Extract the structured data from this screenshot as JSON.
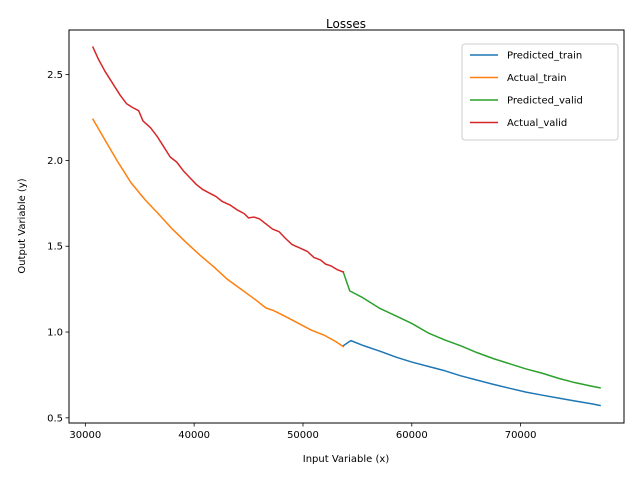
{
  "chart_data": {
    "type": "line",
    "title": "Losses",
    "xlabel": "Input Variable (x)",
    "ylabel": "Output Variable (y)",
    "xlim": [
      28500,
      79500
    ],
    "ylim": [
      0.47,
      2.76
    ],
    "xticks": [
      30000,
      40000,
      50000,
      60000,
      70000
    ],
    "xtick_labels": [
      "30000",
      "40000",
      "50000",
      "60000",
      "70000"
    ],
    "yticks": [
      0.5,
      1.0,
      1.5,
      2.0,
      2.5
    ],
    "ytick_labels": [
      "0.5",
      "1.0",
      "1.5",
      "2.0",
      "2.5"
    ],
    "grid": false,
    "legend_position": "top-right",
    "series": [
      {
        "name": "Predicted_train",
        "color": "#1f77b4",
        "x": [
          53700,
          54400,
          55600,
          57000,
          58500,
          60000,
          61500,
          63000,
          64500,
          66000,
          67500,
          69000,
          70500,
          72000,
          73500,
          75000,
          76500,
          77300
        ],
        "y": [
          0.92,
          0.95,
          0.92,
          0.89,
          0.855,
          0.825,
          0.8,
          0.775,
          0.745,
          0.72,
          0.695,
          0.672,
          0.65,
          0.632,
          0.615,
          0.598,
          0.582,
          0.572
        ]
      },
      {
        "name": "Actual_train",
        "color": "#ff7f0e",
        "x": [
          30700,
          31800,
          33000,
          34200,
          35500,
          36700,
          38000,
          39300,
          40500,
          41800,
          43000,
          44300,
          45600,
          46600,
          47300,
          48400,
          49600,
          50800,
          52000,
          53000,
          53700
        ],
        "y": [
          2.24,
          2.12,
          1.99,
          1.87,
          1.77,
          1.69,
          1.6,
          1.52,
          1.45,
          1.38,
          1.31,
          1.25,
          1.19,
          1.14,
          1.125,
          1.09,
          1.05,
          1.01,
          0.98,
          0.945,
          0.915
        ]
      },
      {
        "name": "Predicted_valid",
        "color": "#2ca02c",
        "x": [
          53700,
          54300,
          55500,
          57000,
          58500,
          60000,
          61500,
          63000,
          64500,
          66000,
          67500,
          69000,
          70500,
          72000,
          73500,
          75000,
          76500,
          77300
        ],
        "y": [
          1.35,
          1.24,
          1.2,
          1.14,
          1.095,
          1.05,
          0.995,
          0.955,
          0.92,
          0.88,
          0.845,
          0.815,
          0.785,
          0.76,
          0.73,
          0.705,
          0.685,
          0.675
        ]
      },
      {
        "name": "Actual_valid",
        "color": "#d62728",
        "x": [
          30700,
          31200,
          31800,
          32500,
          33200,
          33800,
          34300,
          34900,
          35300,
          36000,
          36600,
          37200,
          37800,
          38400,
          39000,
          39600,
          40200,
          40800,
          41400,
          42000,
          42600,
          43300,
          44000,
          44600,
          45000,
          45500,
          46000,
          46600,
          47200,
          47800,
          48400,
          49000,
          49700,
          50400,
          51000,
          51600,
          52100,
          52600,
          53100,
          53700
        ],
        "y": [
          2.66,
          2.59,
          2.52,
          2.45,
          2.38,
          2.33,
          2.31,
          2.29,
          2.23,
          2.19,
          2.14,
          2.08,
          2.02,
          1.99,
          1.94,
          1.9,
          1.86,
          1.83,
          1.81,
          1.79,
          1.76,
          1.74,
          1.71,
          1.69,
          1.665,
          1.67,
          1.66,
          1.63,
          1.6,
          1.585,
          1.545,
          1.51,
          1.49,
          1.47,
          1.435,
          1.42,
          1.395,
          1.385,
          1.365,
          1.35
        ]
      }
    ]
  }
}
